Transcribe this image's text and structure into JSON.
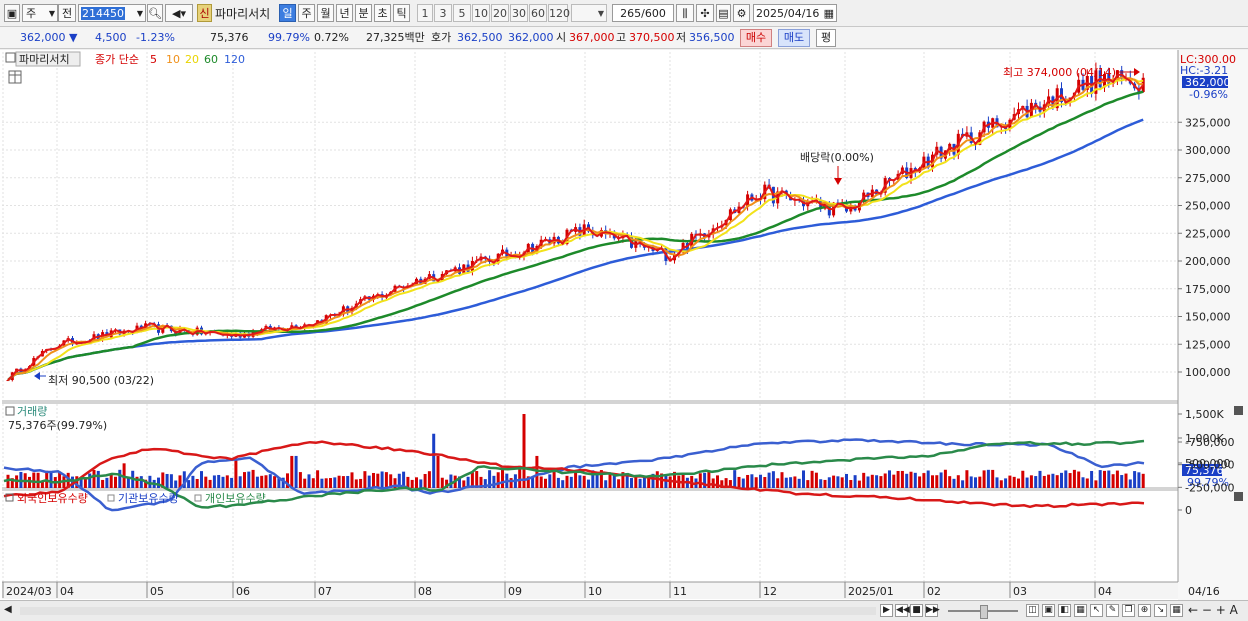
{
  "toolbar": {
    "period_main": "주",
    "prev_label": "전",
    "code": "214450",
    "new_badge": "신",
    "stock_name": "파마리서치",
    "period_tabs": [
      "일",
      "주",
      "월",
      "년",
      "분",
      "초",
      "틱"
    ],
    "active_tab": "일",
    "intervals": [
      "1",
      "3",
      "5",
      "10",
      "20",
      "30",
      "60",
      "120"
    ],
    "count_current": "265",
    "count_total": "/600",
    "date": "2025/04/16"
  },
  "quote": {
    "price": "362,000",
    "change": "4,500",
    "change_pct": "-1.23%",
    "volume": "75,376",
    "vol_ratio": "99.79%",
    "turnover_pct": "0.72%",
    "amount": "27,325백만",
    "bid_label": "호가",
    "ask1": "362,500",
    "bid1": "362,000",
    "open_label": "시",
    "open": "367,000",
    "high_label": "고",
    "high": "370,500",
    "low_label": "저",
    "low": "356,500",
    "buy_label": "매수",
    "sell_label": "매도",
    "avg_label": "평"
  },
  "legend": {
    "stock_name": "파마리서치",
    "ma_label": "종가 단순",
    "ma_periods": [
      "5",
      "10",
      "20",
      "60",
      "120"
    ]
  },
  "colors": {
    "up": "#d40000",
    "down": "#1a3fc6",
    "ma5": "#e01818",
    "ma10": "#f0901a",
    "ma20": "#f2e21a",
    "ma60": "#1d8a2a",
    "ma120": "#2d5cd8",
    "foreign": "#3a5fd0",
    "institution": "#d81818",
    "individual": "#2a8a4a"
  },
  "annotations": {
    "max": "최고 374,000 (04/14)",
    "min": "최저 90,500 (03/22)",
    "dividend": "배당락(0.00%)"
  },
  "axis": {
    "lc": "LC:300.00",
    "hc": "HC:-3.21",
    "price_tag": "362,000",
    "pct_tag": "-0.96%",
    "price_ticks": [
      "325,000",
      "300,000",
      "275,000",
      "250,000",
      "225,000",
      "200,000",
      "175,000",
      "150,000",
      "125,000",
      "100,000"
    ],
    "volume_title": "거래량",
    "volume_value": "75,376주(99.79%)",
    "volume_ticks": [
      "1,500K",
      "1,000K",
      "500,000"
    ],
    "volume_tag": "75,376",
    "volume_pct_tag": "99.79%",
    "holdings_legend": [
      "외국인보유수량",
      "기관보유수량",
      "개인보유수량"
    ],
    "holdings_ticks": [
      "0",
      "-250,000",
      "-500,000",
      "-750,000"
    ],
    "x_labels": [
      "2024/03",
      "04",
      "05",
      "06",
      "07",
      "08",
      "09",
      "10",
      "11",
      "12",
      "2025/01",
      "02",
      "03",
      "04"
    ],
    "x_last": "04/16"
  },
  "chart_data": {
    "type": "candlestick",
    "price_ylim": [
      75000,
      380000
    ],
    "price_close_points": [
      {
        "month": "2024/03",
        "close": 92000
      },
      {
        "month": "04",
        "close": 125000
      },
      {
        "month": "05",
        "close": 140000
      },
      {
        "month": "06",
        "close": 133000
      },
      {
        "month": "07",
        "close": 145000
      },
      {
        "month": "08",
        "close": 182000
      },
      {
        "month": "09",
        "close": 205000
      },
      {
        "month": "10",
        "close": 228000
      },
      {
        "month": "11",
        "close": 205000
      },
      {
        "month": "12",
        "close": 262000
      },
      {
        "month": "2025/01",
        "close": 245000
      },
      {
        "month": "02",
        "close": 290000
      },
      {
        "month": "03",
        "close": 330000
      },
      {
        "month": "04",
        "close": 362000
      }
    ],
    "max": {
      "value": 374000,
      "date": "04/14"
    },
    "min": {
      "value": 90500,
      "date": "03/22"
    },
    "moving_averages": [
      "5",
      "10",
      "20",
      "60",
      "120"
    ],
    "volume_max_k": 1500,
    "holdings_series": [
      "외국인보유수량",
      "기관보유수량",
      "개인보유수량"
    ],
    "holdings_ylim": [
      -850000,
      100000
    ]
  }
}
